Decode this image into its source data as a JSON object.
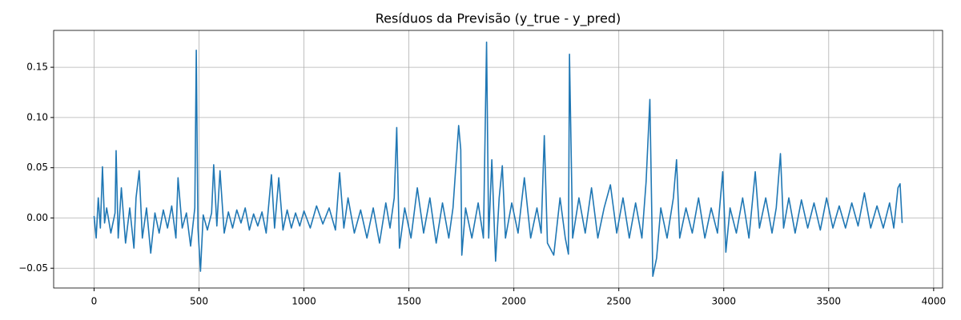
{
  "chart_data": {
    "type": "line",
    "title": "Resíduos da Previsão (y_true - y_pred)",
    "x": [
      0,
      10,
      20,
      30,
      40,
      50,
      60,
      80,
      100,
      105,
      115,
      130,
      150,
      170,
      190,
      200,
      215,
      230,
      250,
      270,
      290,
      310,
      330,
      350,
      370,
      390,
      400,
      420,
      440,
      460,
      480,
      487,
      495,
      507,
      520,
      540,
      560,
      570,
      585,
      600,
      620,
      640,
      660,
      680,
      700,
      720,
      740,
      760,
      780,
      800,
      820,
      845,
      860,
      880,
      900,
      920,
      940,
      960,
      980,
      1000,
      1030,
      1060,
      1090,
      1120,
      1150,
      1170,
      1190,
      1210,
      1240,
      1270,
      1300,
      1330,
      1360,
      1390,
      1410,
      1430,
      1442,
      1455,
      1480,
      1510,
      1540,
      1570,
      1600,
      1630,
      1660,
      1690,
      1710,
      1737,
      1747,
      1752,
      1770,
      1800,
      1830,
      1855,
      1870,
      1880,
      1895,
      1913,
      1930,
      1945,
      1960,
      1990,
      2020,
      2050,
      2080,
      2110,
      2130,
      2145,
      2160,
      2190,
      2220,
      2245,
      2260,
      2265,
      2280,
      2310,
      2340,
      2370,
      2400,
      2430,
      2460,
      2490,
      2520,
      2550,
      2580,
      2610,
      2630,
      2648,
      2662,
      2680,
      2700,
      2730,
      2760,
      2775,
      2790,
      2820,
      2850,
      2880,
      2910,
      2940,
      2970,
      2995,
      3010,
      3030,
      3060,
      3090,
      3120,
      3150,
      3170,
      3200,
      3230,
      3250,
      3270,
      3285,
      3310,
      3340,
      3370,
      3400,
      3430,
      3460,
      3490,
      3520,
      3550,
      3580,
      3610,
      3640,
      3670,
      3700,
      3730,
      3760,
      3790,
      3810,
      3830,
      3840,
      3850
    ],
    "series": [
      {
        "color": "#1f77b4",
        "values": [
          0.002,
          -0.02,
          0.02,
          -0.01,
          0.051,
          -0.005,
          0.01,
          -0.015,
          0.005,
          0.067,
          -0.02,
          0.03,
          -0.025,
          0.01,
          -0.03,
          0.02,
          0.047,
          -0.02,
          0.01,
          -0.035,
          0.005,
          -0.015,
          0.008,
          -0.01,
          0.012,
          -0.02,
          0.04,
          -0.01,
          0.005,
          -0.028,
          0.01,
          0.167,
          -0.01,
          -0.053,
          0.003,
          -0.012,
          0.005,
          0.053,
          -0.008,
          0.047,
          -0.015,
          0.006,
          -0.01,
          0.008,
          -0.005,
          0.01,
          -0.012,
          0.004,
          -0.008,
          0.006,
          -0.015,
          0.043,
          -0.01,
          0.04,
          -0.012,
          0.008,
          -0.01,
          0.005,
          -0.008,
          0.007,
          -0.01,
          0.012,
          -0.006,
          0.01,
          -0.012,
          0.045,
          -0.01,
          0.02,
          -0.015,
          0.008,
          -0.02,
          0.01,
          -0.025,
          0.015,
          -0.01,
          0.02,
          0.09,
          -0.03,
          0.01,
          -0.02,
          0.03,
          -0.015,
          0.02,
          -0.025,
          0.015,
          -0.02,
          0.01,
          0.092,
          0.068,
          -0.037,
          0.01,
          -0.02,
          0.015,
          -0.02,
          0.175,
          -0.02,
          0.058,
          -0.043,
          0.02,
          0.052,
          -0.02,
          0.015,
          -0.015,
          0.04,
          -0.02,
          0.01,
          -0.015,
          0.082,
          -0.025,
          -0.037,
          0.02,
          -0.02,
          -0.036,
          0.163,
          -0.02,
          0.02,
          -0.015,
          0.03,
          -0.02,
          0.01,
          0.033,
          -0.015,
          0.02,
          -0.02,
          0.015,
          -0.02,
          0.036,
          0.118,
          -0.058,
          -0.04,
          0.01,
          -0.02,
          0.02,
          0.058,
          -0.02,
          0.01,
          -0.015,
          0.02,
          -0.02,
          0.01,
          -0.015,
          0.046,
          -0.034,
          0.01,
          -0.015,
          0.02,
          -0.02,
          0.046,
          -0.01,
          0.02,
          -0.015,
          0.01,
          0.064,
          -0.01,
          0.02,
          -0.015,
          0.018,
          -0.01,
          0.015,
          -0.012,
          0.02,
          -0.01,
          0.012,
          -0.01,
          0.015,
          -0.008,
          0.025,
          -0.01,
          0.012,
          -0.01,
          0.015,
          -0.01,
          0.03,
          0.034,
          -0.005
        ]
      }
    ],
    "xlim": [
      -192.5,
      4042.5
    ],
    "xticks": [
      0,
      500,
      1000,
      1500,
      2000,
      2500,
      3000,
      3500,
      4000
    ],
    "ylim": [
      -0.0697,
      0.1867
    ],
    "yticks": [
      {
        "value": -0.05,
        "label": "−0.05"
      },
      {
        "value": 0,
        "label": "0.00"
      },
      0.05,
      {
        "value": 0.1,
        "label": "0.10"
      },
      0.15
    ],
    "grid": true
  }
}
